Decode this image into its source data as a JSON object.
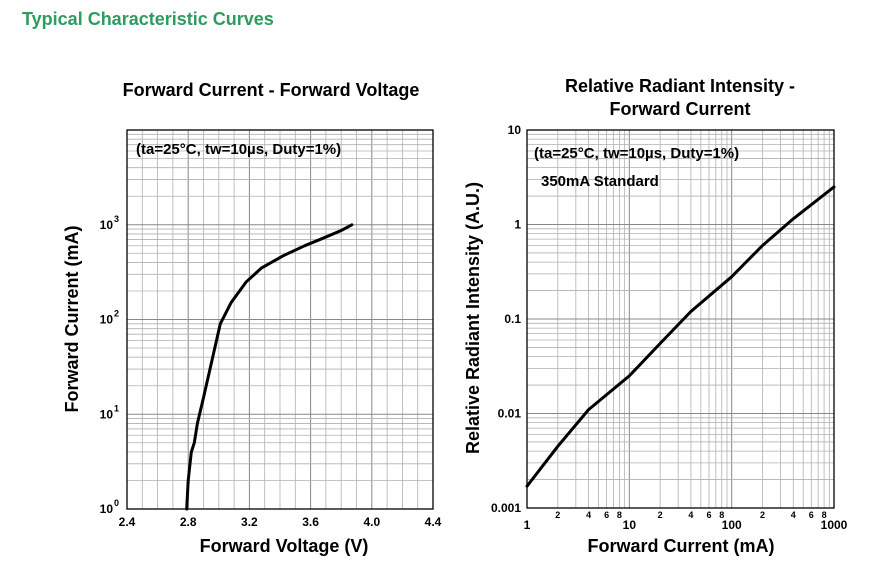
{
  "section_title": "Typical Characteristic Curves",
  "chart_data": [
    {
      "type": "line",
      "title": "Forward Current - Forward Voltage",
      "annotation": "(ta=25°C, tw=10µs, Duty=1%)",
      "xlabel": "Forward Voltage (V)",
      "ylabel": "Forward Current (mA)",
      "xlim": [
        2.4,
        4.4
      ],
      "ylim": [
        1,
        10000
      ],
      "yscale": "log",
      "x_ticks": [
        "2.4",
        "2.8",
        "3.2",
        "3.6",
        "4.0",
        "4.4"
      ],
      "y_ticks": [
        {
          "base": "10",
          "exp": "0",
          "value": 1
        },
        {
          "base": "10",
          "exp": "1",
          "value": 10
        },
        {
          "base": "10",
          "exp": "2",
          "value": 100
        },
        {
          "base": "10",
          "exp": "3",
          "value": 1000
        }
      ],
      "grid": true,
      "series": [
        {
          "x": [
            2.79,
            2.8,
            2.82,
            2.84,
            2.86,
            2.9,
            2.96,
            3.01,
            3.08,
            3.18,
            3.28,
            3.42,
            3.56,
            3.68,
            3.8,
            3.87
          ],
          "y": [
            1,
            2,
            4,
            5,
            8,
            15,
            40,
            90,
            150,
            250,
            350,
            470,
            600,
            720,
            870,
            1000
          ]
        }
      ]
    },
    {
      "type": "line",
      "title": "Relative Radiant Intensity - Forward Current",
      "title_lines": [
        "Relative Radiant Intensity -",
        "Forward Current"
      ],
      "annotation": "(ta=25°C, tw=10µs, Duty=1%)",
      "annotation2": "350mA Standard",
      "xlabel": "Forward Current (mA)",
      "ylabel": "Relative Radiant Intensity (A.U.)",
      "xlim": [
        1,
        1000
      ],
      "ylim": [
        0.001,
        10
      ],
      "xscale": "log",
      "yscale": "log",
      "x_ticks": [
        {
          "label": "1",
          "value": 1
        },
        {
          "label": "10",
          "value": 10
        },
        {
          "label": "100",
          "value": 100
        },
        {
          "label": "1000",
          "value": 1000
        }
      ],
      "x_minor_ticks": [
        {
          "label": "2",
          "value": 2
        },
        {
          "label": "4",
          "value": 4
        },
        {
          "label": "6",
          "value": 6
        },
        {
          "label": "8",
          "value": 8
        },
        {
          "label": "2",
          "value": 20
        },
        {
          "label": "4",
          "value": 40
        },
        {
          "label": "6",
          "value": 60
        },
        {
          "label": "8",
          "value": 80
        },
        {
          "label": "2",
          "value": 200
        },
        {
          "label": "4",
          "value": 400
        },
        {
          "label": "6",
          "value": 600
        },
        {
          "label": "8",
          "value": 800
        }
      ],
      "y_ticks": [
        {
          "label": "0.001",
          "value": 0.001
        },
        {
          "label": "0.01",
          "value": 0.01
        },
        {
          "label": "0.1",
          "value": 0.1
        },
        {
          "label": "1",
          "value": 1
        },
        {
          "label": "10",
          "value": 10
        }
      ],
      "grid": true,
      "series": [
        {
          "x": [
            1,
            2,
            4,
            10,
            20,
            40,
            100,
            200,
            400,
            1000
          ],
          "y": [
            0.0017,
            0.0045,
            0.011,
            0.025,
            0.055,
            0.12,
            0.28,
            0.6,
            1.15,
            2.5
          ]
        }
      ]
    }
  ]
}
